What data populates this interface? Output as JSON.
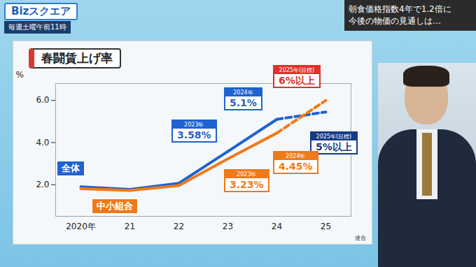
{
  "chart_data": {
    "type": "line",
    "title": "春闘賃上げ率",
    "categories": [
      "2020年",
      "21",
      "22",
      "23",
      "24",
      "25"
    ],
    "ylabel": "%",
    "ylim": [
      0.5,
      6.8
    ],
    "yticks": [
      2,
      4,
      6
    ],
    "grid": false,
    "data_labels": true,
    "source": "連合",
    "series": [
      {
        "name": "全体",
        "color": "#1f62d1",
        "values": [
          1.9,
          1.78,
          2.07,
          3.58,
          5.1,
          5.45
        ],
        "value_labels": [
          null,
          null,
          null,
          "3.58%",
          "5.1%",
          "5%以上"
        ],
        "label_tags": [
          null,
          null,
          null,
          "2023年",
          "2024年",
          "2025年(目標)"
        ],
        "line_styles": [
          "solid",
          "solid",
          "solid",
          "solid",
          "solid",
          "dashed"
        ]
      },
      {
        "name": "中小組合",
        "color": "#ef7a1a",
        "values": [
          1.81,
          1.73,
          1.96,
          3.23,
          4.45,
          6
        ],
        "value_labels": [
          null,
          null,
          null,
          "3.23%",
          "4.45%",
          "6%以上"
        ],
        "label_tags": [
          null,
          null,
          null,
          "2023年",
          "2024年",
          "2025年(目標)"
        ],
        "line_styles": [
          "solid",
          "solid",
          "solid",
          "solid",
          "solid",
          "dashed"
        ]
      }
    ]
  },
  "program": {
    "title": "Bizスクエア",
    "schedule": "毎週土曜午前11時"
  },
  "headline": [
    "朝食価格指数4年で1.2倍に",
    "今後の物価の見通しは…"
  ]
}
